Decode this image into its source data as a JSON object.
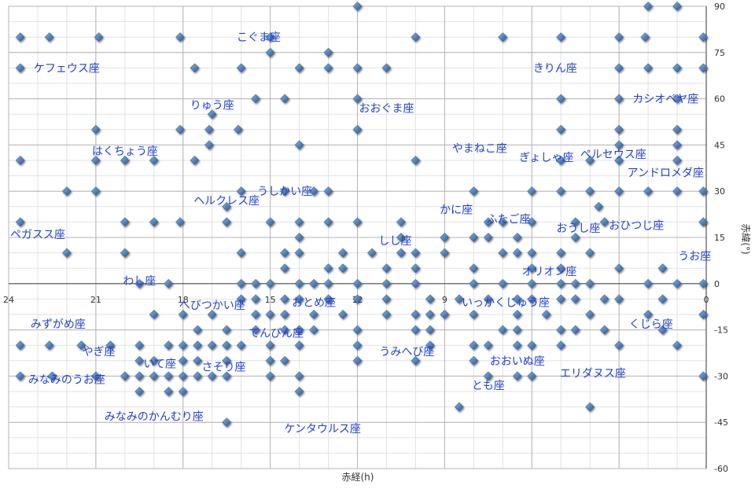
{
  "chart_data": {
    "type": "scatter",
    "xlabel": "赤経(h)",
    "ylabel": "赤緯(°)",
    "xlim": [
      24,
      0
    ],
    "ylim": [
      -60,
      90
    ],
    "x_ticks": [
      24,
      21,
      18,
      15,
      12,
      9,
      6,
      3,
      0
    ],
    "y_ticks": [
      90,
      75,
      60,
      45,
      30,
      15,
      0,
      -15,
      -30,
      -45,
      -60
    ],
    "grid": true,
    "colors": {
      "marker": "#5b8cc4",
      "marker_dark": "#2a2f3a",
      "label": "#1f3fd6",
      "grid": "#cfcfcf"
    },
    "series": [
      {
        "points": [
          [
            23.6,
            80
          ],
          [
            22.6,
            80
          ],
          [
            20.9,
            80
          ],
          [
            18.1,
            80
          ],
          [
            15,
            80
          ],
          [
            10,
            80
          ],
          [
            7,
            80
          ],
          [
            5,
            80
          ],
          [
            3,
            80
          ],
          [
            2.1,
            80
          ],
          [
            0.1,
            80
          ],
          [
            12,
            90
          ],
          [
            2,
            90
          ],
          [
            1,
            90
          ],
          [
            23.6,
            70
          ],
          [
            17.6,
            70
          ],
          [
            16,
            70
          ],
          [
            14,
            70
          ],
          [
            13,
            70
          ],
          [
            12,
            70
          ],
          [
            11,
            70
          ],
          [
            3,
            70
          ],
          [
            2,
            70
          ],
          [
            1,
            70
          ],
          [
            0.1,
            70
          ],
          [
            15,
            75
          ],
          [
            13,
            75
          ],
          [
            17,
            55
          ],
          [
            15.5,
            60
          ],
          [
            14.5,
            60
          ],
          [
            12,
            60
          ],
          [
            5,
            60
          ],
          [
            3,
            60
          ],
          [
            1,
            60
          ],
          [
            21,
            50
          ],
          [
            18.1,
            50
          ],
          [
            17.1,
            50
          ],
          [
            16.1,
            50
          ],
          [
            12,
            50
          ],
          [
            5,
            50
          ],
          [
            3,
            50
          ],
          [
            1,
            50
          ],
          [
            17.1,
            45
          ],
          [
            14,
            45
          ],
          [
            3,
            45
          ],
          [
            1,
            45
          ],
          [
            23.6,
            40
          ],
          [
            21,
            40
          ],
          [
            20,
            40
          ],
          [
            19,
            40
          ],
          [
            17.6,
            40
          ],
          [
            10,
            40
          ],
          [
            5,
            40
          ],
          [
            4,
            40
          ],
          [
            3,
            40
          ],
          [
            1,
            40
          ],
          [
            22,
            30
          ],
          [
            21,
            30
          ],
          [
            16,
            30
          ],
          [
            14.5,
            30
          ],
          [
            13.5,
            30
          ],
          [
            13,
            30
          ],
          [
            8,
            30
          ],
          [
            6,
            30
          ],
          [
            5,
            30
          ],
          [
            4,
            30
          ],
          [
            3,
            30
          ],
          [
            2,
            30
          ],
          [
            1,
            30
          ],
          [
            0.1,
            30
          ],
          [
            16.5,
            25
          ],
          [
            3.7,
            25
          ],
          [
            23.6,
            20
          ],
          [
            20,
            20
          ],
          [
            19,
            20
          ],
          [
            18.1,
            20
          ],
          [
            16.5,
            20
          ],
          [
            15,
            20
          ],
          [
            14,
            20
          ],
          [
            13,
            20
          ],
          [
            12,
            20
          ],
          [
            10.5,
            20
          ],
          [
            7.5,
            20
          ],
          [
            7,
            20
          ],
          [
            6,
            20
          ],
          [
            4.5,
            20
          ],
          [
            3.5,
            20
          ],
          [
            0.1,
            20
          ],
          [
            22,
            10
          ],
          [
            20,
            10
          ],
          [
            16,
            10
          ],
          [
            14.5,
            10
          ],
          [
            14,
            10
          ],
          [
            12.5,
            10
          ],
          [
            11.5,
            10
          ],
          [
            10.5,
            10
          ],
          [
            10,
            10
          ],
          [
            9,
            10
          ],
          [
            7,
            10
          ],
          [
            6.5,
            10
          ],
          [
            6,
            10
          ],
          [
            5,
            10
          ],
          [
            4,
            10
          ],
          [
            14,
            15
          ],
          [
            10.5,
            15
          ],
          [
            9,
            15
          ],
          [
            8,
            15
          ],
          [
            7.5,
            15
          ],
          [
            6.5,
            15
          ],
          [
            4.5,
            15
          ],
          [
            14.5,
            5
          ],
          [
            13,
            5
          ],
          [
            12.5,
            5
          ],
          [
            11,
            5
          ],
          [
            10,
            5
          ],
          [
            8,
            5
          ],
          [
            6,
            5
          ],
          [
            5,
            5
          ],
          [
            3,
            5
          ],
          [
            1.5,
            5
          ],
          [
            19.5,
            0
          ],
          [
            18.5,
            0
          ],
          [
            16,
            0
          ],
          [
            15.5,
            0
          ],
          [
            15,
            0
          ],
          [
            14,
            0
          ],
          [
            13.5,
            0
          ],
          [
            13,
            0
          ],
          [
            12,
            0
          ],
          [
            11,
            0
          ],
          [
            10,
            0
          ],
          [
            8,
            0
          ],
          [
            7,
            0
          ],
          [
            6,
            0
          ],
          [
            5,
            0
          ],
          [
            4.5,
            0
          ],
          [
            4,
            0
          ],
          [
            2,
            0
          ],
          [
            1,
            0
          ],
          [
            0.1,
            0
          ],
          [
            16,
            -5
          ],
          [
            15.5,
            -5
          ],
          [
            14.5,
            -5
          ],
          [
            14,
            -5
          ],
          [
            13,
            -5
          ],
          [
            12,
            -5
          ],
          [
            11,
            -5
          ],
          [
            9.5,
            -5
          ],
          [
            8.5,
            -5
          ],
          [
            7.5,
            -5
          ],
          [
            6.5,
            -5
          ],
          [
            6,
            -5
          ],
          [
            5,
            -5
          ],
          [
            4.5,
            -5
          ],
          [
            3.5,
            -5
          ],
          [
            3,
            -5
          ],
          [
            1.5,
            -5
          ],
          [
            19,
            -10
          ],
          [
            18,
            -10
          ],
          [
            17,
            -10
          ],
          [
            15.5,
            -10
          ],
          [
            15,
            -10
          ],
          [
            14.5,
            -10
          ],
          [
            13.5,
            -10
          ],
          [
            12.5,
            -10
          ],
          [
            11,
            -10
          ],
          [
            10,
            -10
          ],
          [
            9.5,
            -10
          ],
          [
            9,
            -10
          ],
          [
            8,
            -10
          ],
          [
            6.5,
            -10
          ],
          [
            5.5,
            -10
          ],
          [
            4,
            -10
          ],
          [
            2,
            -10
          ],
          [
            0.1,
            -10
          ],
          [
            17.5,
            -15
          ],
          [
            16.5,
            -15
          ],
          [
            15.5,
            -15
          ],
          [
            14.5,
            -15
          ],
          [
            14,
            -15
          ],
          [
            13.5,
            -15
          ],
          [
            12,
            -15
          ],
          [
            10,
            -15
          ],
          [
            9.5,
            -15
          ],
          [
            7,
            -15
          ],
          [
            6.5,
            -15
          ],
          [
            5,
            -15
          ],
          [
            4.5,
            -15
          ],
          [
            3.5,
            -15
          ],
          [
            1.5,
            -15
          ],
          [
            23.6,
            -20
          ],
          [
            22.6,
            -20
          ],
          [
            21.5,
            -20
          ],
          [
            20.5,
            -20
          ],
          [
            19.5,
            -20
          ],
          [
            18.5,
            -20
          ],
          [
            18,
            -20
          ],
          [
            17.5,
            -20
          ],
          [
            17,
            -20
          ],
          [
            16.5,
            -20
          ],
          [
            16,
            -20
          ],
          [
            15,
            -20
          ],
          [
            14,
            -20
          ],
          [
            12,
            -20
          ],
          [
            9.5,
            -20
          ],
          [
            8,
            -20
          ],
          [
            7.5,
            -20
          ],
          [
            6.5,
            -20
          ],
          [
            6,
            -20
          ],
          [
            5,
            -20
          ],
          [
            3,
            -20
          ],
          [
            1,
            -20
          ],
          [
            19.5,
            -25
          ],
          [
            19,
            -25
          ],
          [
            18,
            -25
          ],
          [
            17.5,
            -25
          ],
          [
            16.5,
            -25
          ],
          [
            15,
            -25
          ],
          [
            14.5,
            -25
          ],
          [
            12,
            -25
          ],
          [
            10,
            -25
          ],
          [
            8,
            -25
          ],
          [
            23.6,
            -30
          ],
          [
            22.5,
            -30
          ],
          [
            21,
            -30
          ],
          [
            20,
            -30
          ],
          [
            19.5,
            -30
          ],
          [
            19,
            -30
          ],
          [
            18.5,
            -30
          ],
          [
            18,
            -30
          ],
          [
            17.5,
            -30
          ],
          [
            17,
            -30
          ],
          [
            16.5,
            -30
          ],
          [
            15,
            -30
          ],
          [
            14,
            -30
          ],
          [
            7.5,
            -30
          ],
          [
            6.5,
            -30
          ],
          [
            6,
            -30
          ],
          [
            0.1,
            -30
          ],
          [
            19.5,
            -35
          ],
          [
            18.5,
            -35
          ],
          [
            18,
            -35
          ],
          [
            14,
            -35
          ],
          [
            8.5,
            -40
          ],
          [
            4,
            -40
          ],
          [
            16.5,
            -45
          ]
        ]
      }
    ],
    "labels": [
      {
        "text": "ケフェウス座",
        "x": 22,
        "y": 70
      },
      {
        "text": "こぐま座",
        "x": 15.4,
        "y": 80
      },
      {
        "text": "りゅう座",
        "x": 17,
        "y": 58
      },
      {
        "text": "おおぐま座",
        "x": 11,
        "y": 57
      },
      {
        "text": "きりん座",
        "x": 5.2,
        "y": 70
      },
      {
        "text": "カシオペヤ座",
        "x": 1.4,
        "y": 60
      },
      {
        "text": "はくちょう座",
        "x": 20,
        "y": 43
      },
      {
        "text": "やまねこ座",
        "x": 7.8,
        "y": 44
      },
      {
        "text": "ぎょしゃ座",
        "x": 5.5,
        "y": 41
      },
      {
        "text": "ペルセウス座",
        "x": 3.2,
        "y": 42
      },
      {
        "text": "アンドロメダ座",
        "x": 1.4,
        "y": 36
      },
      {
        "text": "うしかい座",
        "x": 14.5,
        "y": 30
      },
      {
        "text": "ヘルクレス座",
        "x": 16.5,
        "y": 27
      },
      {
        "text": "かに座",
        "x": 8.6,
        "y": 24
      },
      {
        "text": "ふたご座",
        "x": 6.8,
        "y": 21
      },
      {
        "text": "おうし座",
        "x": 4.4,
        "y": 18
      },
      {
        "text": "おひつじ座",
        "x": 2.4,
        "y": 19
      },
      {
        "text": "ペガスス座",
        "x": 23,
        "y": 16
      },
      {
        "text": "しし座",
        "x": 10.7,
        "y": 14
      },
      {
        "text": "うお座",
        "x": 0.4,
        "y": 9
      },
      {
        "text": "わし座",
        "x": 19.5,
        "y": 1
      },
      {
        "text": "オリオン座",
        "x": 5.4,
        "y": 4
      },
      {
        "text": "へびつかい座",
        "x": 17,
        "y": -7
      },
      {
        "text": "おとめ座",
        "x": 13.5,
        "y": -6
      },
      {
        "text": "いっかくじゅう座",
        "x": 6.9,
        "y": -6
      },
      {
        "text": "みずがめ座",
        "x": 22.3,
        "y": -13
      },
      {
        "text": "てんびん座",
        "x": 14.8,
        "y": -16
      },
      {
        "text": "くじら座",
        "x": 1.9,
        "y": -13
      },
      {
        "text": "やぎ座",
        "x": 20.9,
        "y": -22
      },
      {
        "text": "うみへび座",
        "x": 10.3,
        "y": -22
      },
      {
        "text": "おおいぬ座",
        "x": 6.5,
        "y": -25
      },
      {
        "text": "いて座",
        "x": 18.8,
        "y": -26
      },
      {
        "text": "さそり座",
        "x": 16.6,
        "y": -27
      },
      {
        "text": "エリダヌス座",
        "x": 3.9,
        "y": -29
      },
      {
        "text": "みなみのうお座",
        "x": 22,
        "y": -31
      },
      {
        "text": "とも座",
        "x": 7.5,
        "y": -33
      },
      {
        "text": "みなみのかんむり座",
        "x": 19,
        "y": -43
      },
      {
        "text": "ケンタウルス座",
        "x": 13.2,
        "y": -47
      }
    ]
  }
}
